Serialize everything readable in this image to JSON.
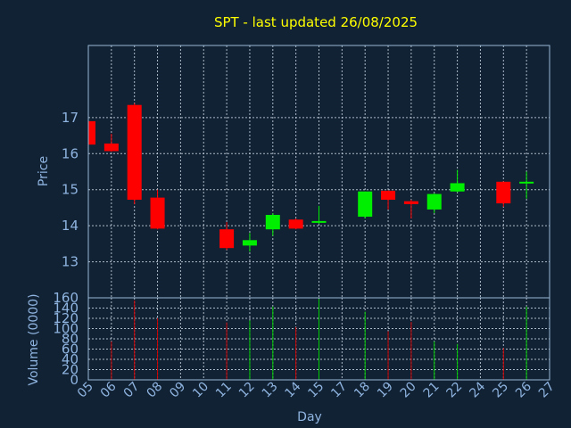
{
  "colors": {
    "background": "#112234",
    "title": "#ffff00",
    "axis_text": "#8fb4e0",
    "frame": "#9bbad6",
    "grid": "#c8d4e2",
    "up": "#00ee00",
    "down": "#ff0000",
    "volume_up": "#00cc00",
    "volume_down": "#cc0000"
  },
  "chart_data": {
    "type": "candlestick",
    "title": "SPT - last updated 26/08/2025",
    "xlabel": "Day",
    "ylabel": "Price",
    "volume_ylabel": "Volume (0000)",
    "ylim": [
      12,
      19
    ],
    "yticks": [
      "13",
      "14",
      "15",
      "16",
      "17"
    ],
    "volume_ylim": [
      0,
      160
    ],
    "volume_yticks": [
      "0",
      "20",
      "40",
      "60",
      "80",
      "100",
      "120",
      "140",
      "160"
    ],
    "x_ticks": [
      "05",
      "06",
      "07",
      "08",
      "09",
      "10",
      "11",
      "12",
      "13",
      "14",
      "15",
      "17",
      "18",
      "19",
      "20",
      "21",
      "22",
      "24",
      "25",
      "26",
      "27"
    ],
    "grid": true,
    "candles": [
      {
        "day": "05",
        "open": 16.9,
        "high": 16.95,
        "low": 16.2,
        "close": 16.25,
        "volume": 0
      },
      {
        "day": "06",
        "open": 16.28,
        "high": 16.55,
        "low": 16.05,
        "close": 16.07,
        "volume": 75
      },
      {
        "day": "07",
        "open": 17.35,
        "high": 17.4,
        "low": 14.6,
        "close": 14.72,
        "volume": 155
      },
      {
        "day": "08",
        "open": 14.78,
        "high": 15.0,
        "low": 13.9,
        "close": 13.92,
        "volume": 120
      },
      {
        "day": "11",
        "open": 13.9,
        "high": 14.1,
        "low": 13.33,
        "close": 13.38,
        "volume": 112
      },
      {
        "day": "12",
        "open": 13.45,
        "high": 13.8,
        "low": 13.28,
        "close": 13.6,
        "volume": 116
      },
      {
        "day": "13",
        "open": 13.9,
        "high": 14.35,
        "low": 13.72,
        "close": 14.3,
        "volume": 143
      },
      {
        "day": "14",
        "open": 14.17,
        "high": 14.2,
        "low": 13.9,
        "close": 13.92,
        "volume": 103
      },
      {
        "day": "15",
        "open": 14.08,
        "high": 14.55,
        "low": 14.05,
        "close": 14.13,
        "volume": 158
      },
      {
        "day": "18",
        "open": 14.25,
        "high": 14.95,
        "low": 14.2,
        "close": 14.95,
        "volume": 133
      },
      {
        "day": "19",
        "open": 14.97,
        "high": 14.98,
        "low": 14.45,
        "close": 14.72,
        "volume": 95
      },
      {
        "day": "20",
        "open": 14.68,
        "high": 14.72,
        "low": 14.2,
        "close": 14.6,
        "volume": 113
      },
      {
        "day": "21",
        "open": 14.45,
        "high": 14.9,
        "low": 14.35,
        "close": 14.88,
        "volume": 75
      },
      {
        "day": "22",
        "open": 14.95,
        "high": 15.55,
        "low": 14.93,
        "close": 15.18,
        "volume": 70
      },
      {
        "day": "25",
        "open": 15.22,
        "high": 15.23,
        "low": 14.52,
        "close": 14.62,
        "volume": 62
      },
      {
        "day": "26",
        "open": 15.2,
        "high": 15.5,
        "low": 14.75,
        "close": 15.22,
        "volume": 143
      }
    ]
  }
}
